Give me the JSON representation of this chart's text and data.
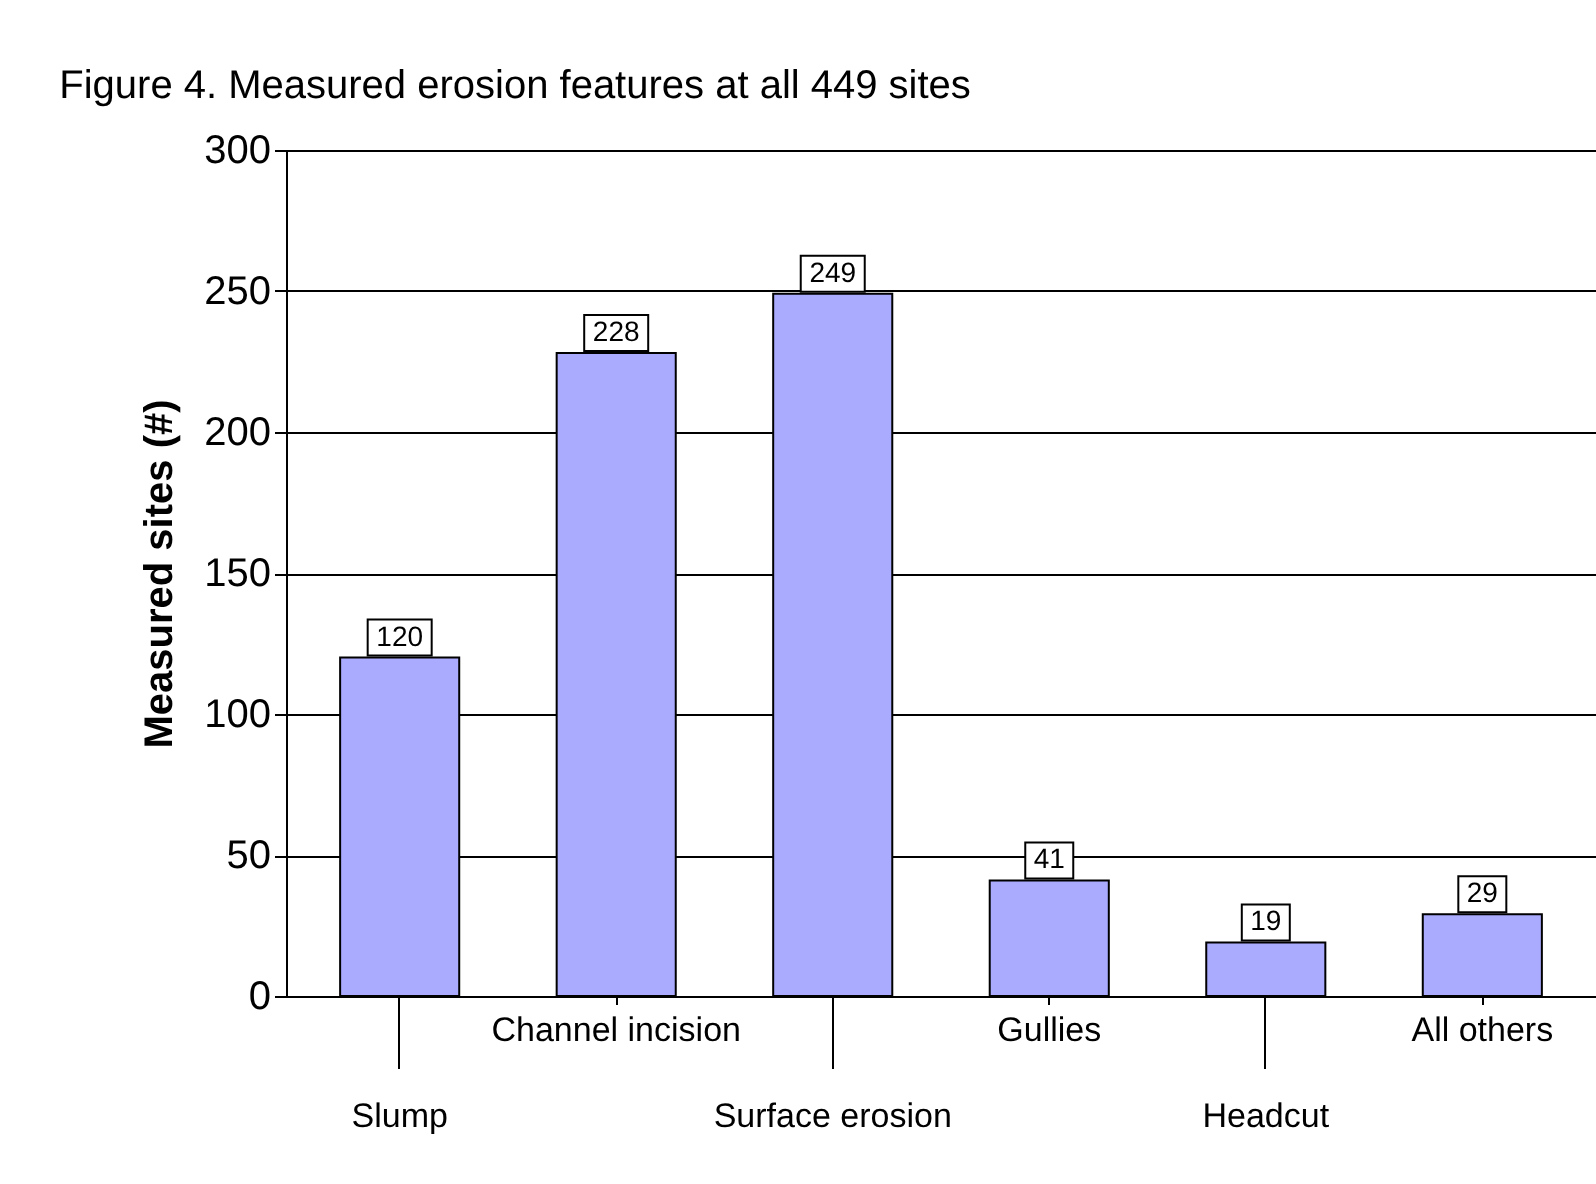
{
  "chart_data": {
    "type": "bar",
    "title": "Figure 4.  Measured erosion features at all 449 sites",
    "ylabel": "Measured sites (#)",
    "categories": [
      "Slump",
      "Channel incision",
      "Surface erosion",
      "Gullies",
      "Headcut",
      "All others"
    ],
    "values": [
      120,
      228,
      249,
      41,
      19,
      29
    ],
    "color": "#aaaaff",
    "ylim": [
      0,
      300
    ],
    "yticks": [
      0,
      50,
      100,
      150,
      200,
      250,
      300
    ],
    "grid": "y",
    "data_labels": true
  }
}
